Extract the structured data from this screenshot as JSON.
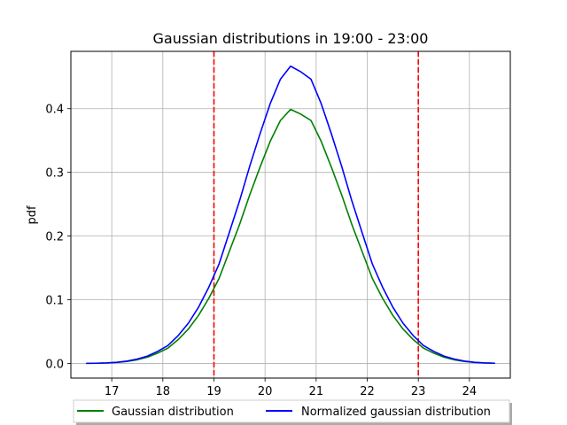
{
  "chart_data": {
    "type": "line",
    "title": "Gaussian distributions in 19:00 - 23:00",
    "xlabel": "",
    "ylabel": "pdf",
    "xlim": [
      16.2,
      24.8
    ],
    "ylim": [
      -0.023,
      0.49
    ],
    "xticks": [
      17,
      18,
      19,
      20,
      21,
      22,
      23,
      24
    ],
    "yticks": [
      0.0,
      0.1,
      0.2,
      0.3,
      0.4
    ],
    "ytick_labels": [
      "0.0",
      "0.1",
      "0.2",
      "0.3",
      "0.4"
    ],
    "grid": true,
    "legend_position": "bottom-center",
    "x": [
      16.5,
      16.7,
      16.9,
      17.1,
      17.3,
      17.5,
      17.7,
      17.9,
      18.1,
      18.3,
      18.5,
      18.7,
      18.9,
      19.1,
      19.3,
      19.5,
      19.7,
      19.9,
      20.1,
      20.3,
      20.5,
      20.7,
      20.9,
      21.1,
      21.3,
      21.5,
      21.7,
      21.9,
      22.1,
      22.3,
      22.5,
      22.7,
      22.9,
      23.1,
      23.3,
      23.5,
      23.7,
      23.9,
      24.1,
      24.3,
      24.5
    ],
    "series": [
      {
        "name": "Gaussian distribution",
        "color": "#008000",
        "values": [
          0.0001,
          0.0003,
          0.0007,
          0.0015,
          0.0032,
          0.0058,
          0.0099,
          0.0162,
          0.0241,
          0.0374,
          0.054,
          0.0756,
          0.1023,
          0.1334,
          0.1756,
          0.2179,
          0.2646,
          0.3078,
          0.3485,
          0.3814,
          0.3989,
          0.3914,
          0.3814,
          0.3485,
          0.3078,
          0.2646,
          0.2179,
          0.1756,
          0.1334,
          0.1023,
          0.0756,
          0.054,
          0.0374,
          0.0241,
          0.0162,
          0.0099,
          0.0058,
          0.0032,
          0.0015,
          0.0007,
          0.0003
        ]
      },
      {
        "name": "Normalized gaussian distribution",
        "color": "#0000ff",
        "values": [
          0.0001,
          0.0003,
          0.0008,
          0.0018,
          0.0037,
          0.0068,
          0.0116,
          0.019,
          0.0282,
          0.0437,
          0.0632,
          0.0885,
          0.1197,
          0.1561,
          0.2054,
          0.255,
          0.3095,
          0.3601,
          0.4077,
          0.4462,
          0.4667,
          0.4579,
          0.4462,
          0.4077,
          0.3601,
          0.3095,
          0.255,
          0.2054,
          0.1561,
          0.1197,
          0.0885,
          0.0632,
          0.0437,
          0.0282,
          0.019,
          0.0116,
          0.0068,
          0.0037,
          0.0018,
          0.0008,
          0.0003
        ]
      }
    ],
    "vlines": [
      {
        "x": 19,
        "color": "#ff0000",
        "style": "dashed"
      },
      {
        "x": 23,
        "color": "#ff0000",
        "style": "dashed"
      }
    ]
  }
}
